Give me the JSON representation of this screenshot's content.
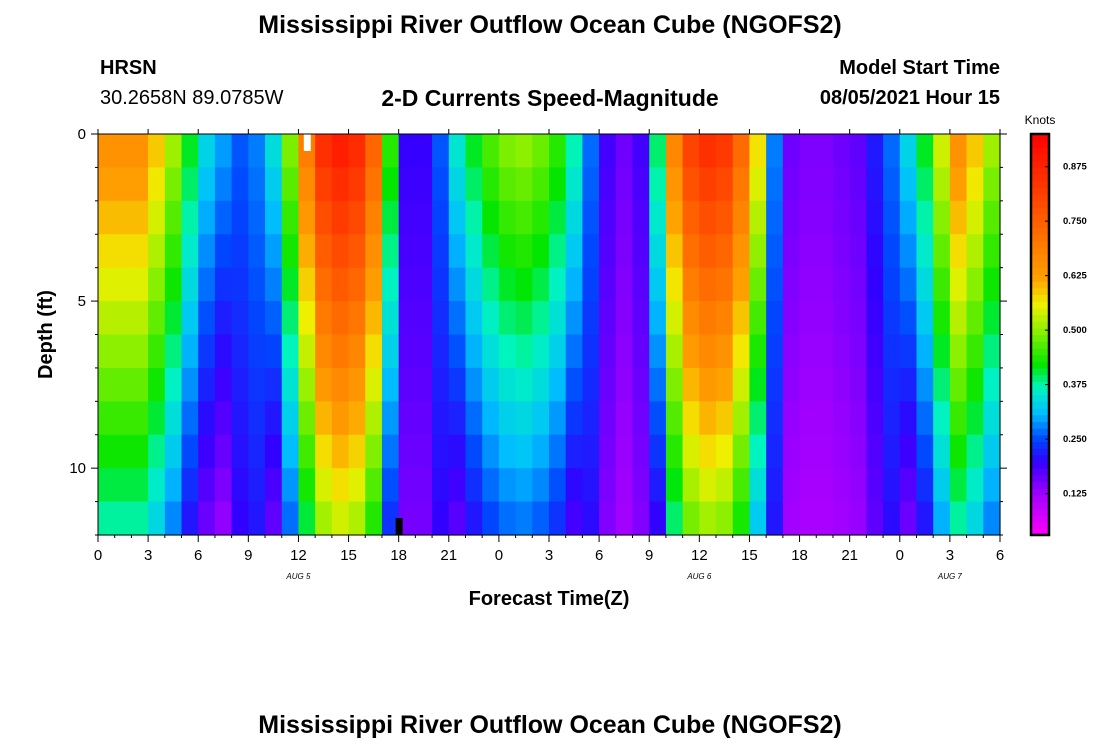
{
  "title": "Mississippi River Outflow Ocean Cube (NGOFS2)",
  "footer_title": "Mississippi River Outflow Ocean Cube (NGOFS2)",
  "station": {
    "code": "HRSN",
    "coords": "30.2658N  89.0785W"
  },
  "plot_title": "2-D Currents Speed-Magnitude",
  "model_start": {
    "label": "Model Start Time",
    "value": "08/05/2021 Hour 15"
  },
  "chart_data": {
    "type": "heatmap",
    "xlabel": "Forecast Time(Z)",
    "ylabel": "Depth (ft)",
    "x_tick_labels": [
      "0",
      "3",
      "6",
      "9",
      "12",
      "15",
      "18",
      "21",
      "0",
      "3",
      "6",
      "9",
      "12",
      "15",
      "18",
      "21",
      "0",
      "3",
      "6"
    ],
    "date_labels": [
      {
        "text": "AUG 5",
        "hour": 12
      },
      {
        "text": "AUG 6",
        "hour": 36
      },
      {
        "text": "AUG 7",
        "hour": 51
      }
    ],
    "y_ticks": [
      0,
      5,
      10
    ],
    "ylim": [
      0,
      12
    ],
    "xlim": [
      0,
      54
    ],
    "colorbar": {
      "unit": "Knots",
      "ticks": [
        "0.875",
        "0.750",
        "0.625",
        "0.500",
        "0.375",
        "0.250",
        "0.125"
      ],
      "tick_values": [
        0.875,
        0.75,
        0.625,
        0.5,
        0.375,
        0.25,
        0.125
      ],
      "range": [
        0.03,
        0.95
      ]
    },
    "surface_speed_by_hour": [
      0.66,
      0.66,
      0.66,
      0.6,
      0.52,
      0.42,
      0.34,
      0.3,
      0.26,
      0.28,
      0.35,
      0.5,
      0.7,
      0.86,
      0.9,
      0.87,
      0.75,
      0.45,
      0.2,
      0.2,
      0.26,
      0.36,
      0.42,
      0.47,
      0.5,
      0.51,
      0.49,
      0.45,
      0.38,
      0.27,
      0.19,
      0.16,
      0.19,
      0.4,
      0.68,
      0.82,
      0.86,
      0.84,
      0.74,
      0.58,
      0.28,
      0.16,
      0.15,
      0.15,
      0.16,
      0.17,
      0.22,
      0.27,
      0.34,
      0.42,
      0.55,
      0.66,
      0.6,
      0.52
    ],
    "markers": [
      {
        "hour": 12.5,
        "position": "top",
        "color": "#ffffff"
      },
      {
        "hour": 18,
        "position": "bottom",
        "color": "#000000"
      }
    ]
  }
}
